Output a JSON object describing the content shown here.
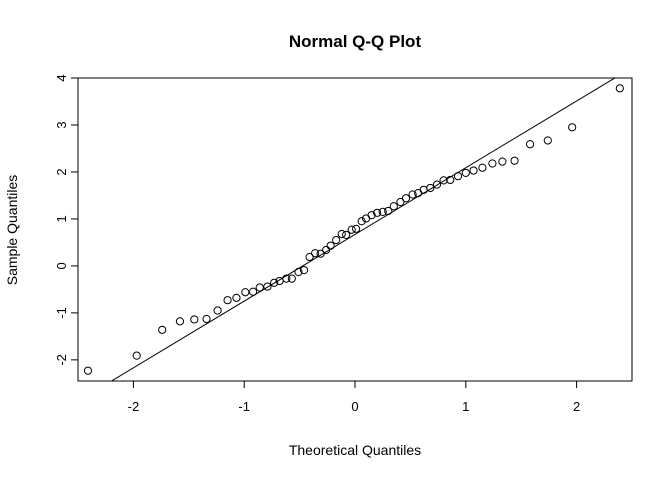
{
  "chart_data": {
    "type": "scatter",
    "title": "Normal Q-Q Plot",
    "xlabel": "Theoretical Quantiles",
    "ylabel": "Sample Quantiles",
    "xlim": [
      -2.5,
      2.5
    ],
    "ylim": [
      -2.45,
      4.0
    ],
    "xticks": [
      -2,
      -1,
      0,
      1,
      2
    ],
    "yticks": [
      -2,
      -1,
      0,
      1,
      2,
      3,
      4
    ],
    "xtick_labels": [
      "-2",
      "-1",
      "0",
      "1",
      "2"
    ],
    "ytick_labels": [
      "-2",
      "-1",
      "0",
      "1",
      "2",
      "3",
      "4"
    ],
    "grid": false,
    "reference_line": {
      "intercept": 0.67,
      "slope": 1.42
    },
    "points": [
      [
        -2.41,
        -2.23
      ],
      [
        -1.97,
        -1.91
      ],
      [
        -1.74,
        -1.36
      ],
      [
        -1.58,
        -1.18
      ],
      [
        -1.45,
        -1.14
      ],
      [
        -1.34,
        -1.13
      ],
      [
        -1.24,
        -0.95
      ],
      [
        -1.15,
        -0.73
      ],
      [
        -1.07,
        -0.68
      ],
      [
        -0.99,
        -0.56
      ],
      [
        -0.92,
        -0.55
      ],
      [
        -0.86,
        -0.46
      ],
      [
        -0.79,
        -0.44
      ],
      [
        -0.73,
        -0.36
      ],
      [
        -0.68,
        -0.32
      ],
      [
        -0.62,
        -0.27
      ],
      [
        -0.57,
        -0.27
      ],
      [
        -0.51,
        -0.13
      ],
      [
        -0.46,
        -0.09
      ],
      [
        -0.41,
        0.19
      ],
      [
        -0.36,
        0.27
      ],
      [
        -0.31,
        0.26
      ],
      [
        -0.26,
        0.34
      ],
      [
        -0.22,
        0.43
      ],
      [
        -0.17,
        0.55
      ],
      [
        -0.12,
        0.68
      ],
      [
        -0.08,
        0.66
      ],
      [
        -0.03,
        0.77
      ],
      [
        0.01,
        0.79
      ],
      [
        0.06,
        0.95
      ],
      [
        0.1,
        1.01
      ],
      [
        0.15,
        1.08
      ],
      [
        0.2,
        1.13
      ],
      [
        0.25,
        1.15
      ],
      [
        0.3,
        1.17
      ],
      [
        0.35,
        1.27
      ],
      [
        0.41,
        1.36
      ],
      [
        0.46,
        1.44
      ],
      [
        0.52,
        1.52
      ],
      [
        0.57,
        1.55
      ],
      [
        0.62,
        1.62
      ],
      [
        0.68,
        1.66
      ],
      [
        0.74,
        1.73
      ],
      [
        0.8,
        1.82
      ],
      [
        0.86,
        1.83
      ],
      [
        0.93,
        1.91
      ],
      [
        1.0,
        1.98
      ],
      [
        1.07,
        2.03
      ],
      [
        1.15,
        2.09
      ],
      [
        1.24,
        2.18
      ],
      [
        1.33,
        2.22
      ],
      [
        1.44,
        2.24
      ],
      [
        1.58,
        2.59
      ],
      [
        1.74,
        2.67
      ],
      [
        1.96,
        2.95
      ],
      [
        2.39,
        3.78
      ]
    ]
  }
}
